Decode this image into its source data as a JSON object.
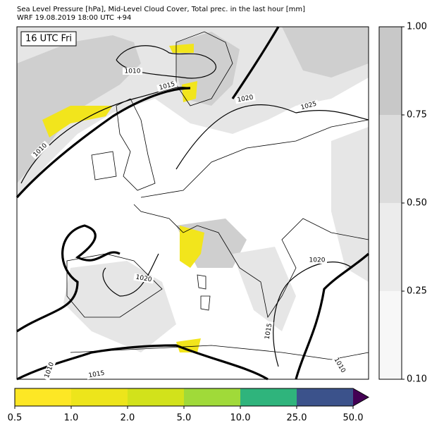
{
  "title": [
    "Sea Level Pressure [hPa], Mid-Level Cloud Cover, Total prec. in the last hour [mm]",
    "WRF 19.08.2019 18:00 UTC +94"
  ],
  "time_label": "16 UTC Fri",
  "contour_labels": [
    "1010",
    "1015",
    "1020",
    "1025",
    "1010",
    "1020",
    "1020",
    "1015",
    "1010",
    "1015",
    "1010"
  ],
  "cloud_colorbar": {
    "ticks": [
      {
        "value": 0.1,
        "label": "0.10"
      },
      0.25,
      {
        "value": 0.5,
        "label": "0.50"
      },
      0.75,
      {
        "value": 1.0,
        "label": "1.00"
      }
    ],
    "colors": [
      "#f7f7f7",
      "#ececec",
      "#dcdcdc",
      "#c8c8c8"
    ]
  },
  "precip_colorbar": {
    "ticks": [
      0.5,
      {
        "value": 1.0,
        "label": "1.0"
      },
      {
        "value": 2.0,
        "label": "2.0"
      },
      {
        "value": 5.0,
        "label": "5.0"
      },
      {
        "value": 10.0,
        "label": "10.0"
      },
      {
        "value": 25.0,
        "label": "25.0"
      },
      {
        "value": 50.0,
        "label": "50.0"
      }
    ],
    "colors": [
      "#fde725",
      "#ede51b",
      "#d2e21b",
      "#a0da39",
      "#2fb47c",
      "#3b528b"
    ],
    "extend_color": "#440154"
  }
}
